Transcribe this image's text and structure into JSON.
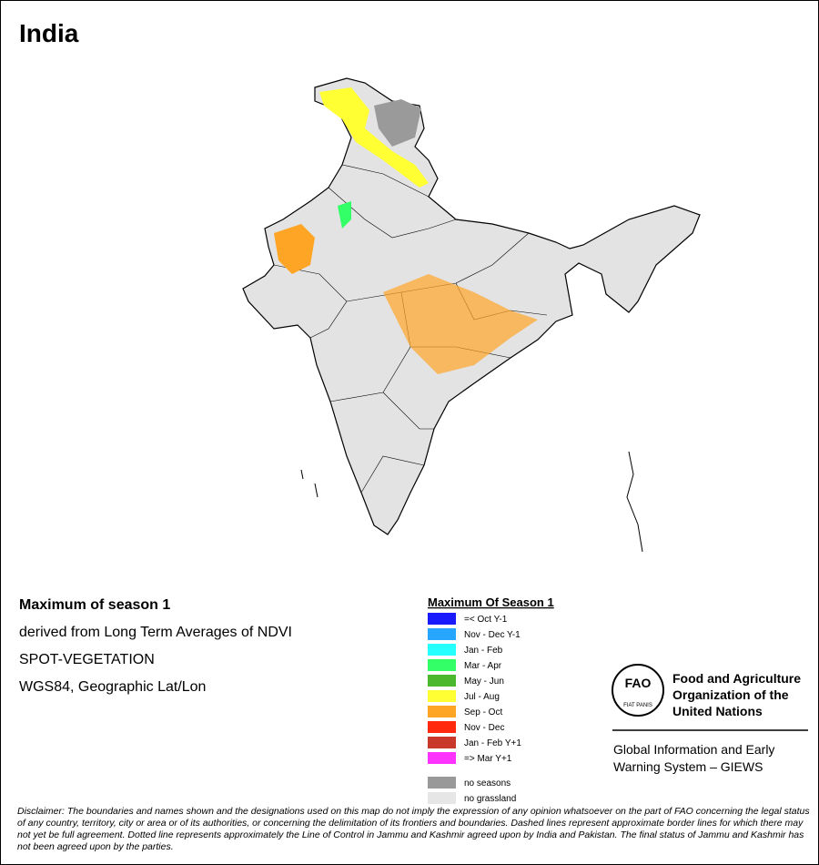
{
  "header": {
    "title": "India"
  },
  "info": {
    "lines": [
      "Maximum of season 1",
      "derived from Long Term Averages of NDVI",
      "SPOT-VEGETATION",
      "WGS84, Geographic Lat/Lon"
    ]
  },
  "legend": {
    "title": "Maximum Of Season 1",
    "items": [
      {
        "label": "=< Oct Y-1",
        "color": "#1a1aff"
      },
      {
        "label": "Nov - Dec Y-1",
        "color": "#26a6ff"
      },
      {
        "label": "Jan - Feb",
        "color": "#26ffff"
      },
      {
        "label": "Mar - Apr",
        "color": "#33ff66"
      },
      {
        "label": "May - Jun",
        "color": "#4cb82e"
      },
      {
        "label": "Jul - Aug",
        "color": "#ffff33"
      },
      {
        "label": "Sep - Oct",
        "color": "#ffa526"
      },
      {
        "label": "Nov - Dec",
        "color": "#ff2a0d"
      },
      {
        "label": "Jan - Feb Y+1",
        "color": "#c8392a"
      },
      {
        "label": "=> Mar Y+1",
        "color": "#ff33ff"
      }
    ],
    "extra": [
      {
        "label": "no seasons",
        "color": "#999999"
      },
      {
        "label": "no grassland",
        "color": "#e6e6e6"
      }
    ]
  },
  "logo": {
    "emblem": "FAO",
    "motto": "FIAT PANIS",
    "org_lines": [
      "Food and Agriculture",
      "Organization of the",
      "United Nations"
    ],
    "system_lines": [
      "Global Information and Early",
      "Warning System – GIEWS"
    ]
  },
  "disclaimer": "Disclaimer: The boundaries and names shown and the designations used on this map do not imply the expression of any opinion whatsoever on the part of FAO concerning the legal status of any country, territory, city or area or of its authorities, or concerning the delimitation of its frontiers and boundaries. Dashed lines represent approximate border lines for which there may not yet be full agreement. Dotted line represents approximately the Line of Control in Jammu and Kashmir agreed upon by India and Pakistan. The final status of Jammu and Kashmir has not been agreed upon by the parties."
}
